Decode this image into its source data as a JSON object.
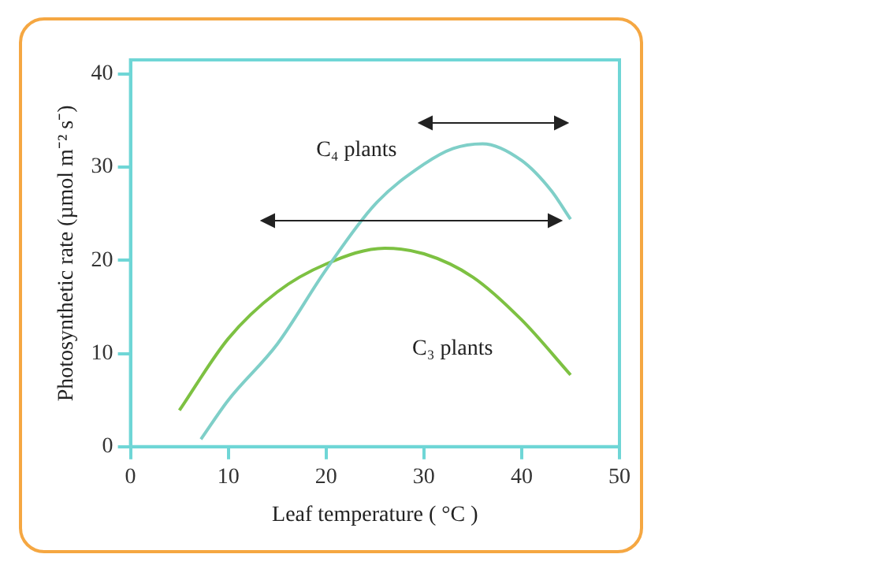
{
  "chart_data": {
    "type": "line",
    "xlabel": "Leaf temperature ( °C )",
    "ylabel": "Photosynthetic rate (µmol m⁻² s⁻)",
    "xlim": [
      0,
      50
    ],
    "xticks": [
      0,
      10,
      20,
      30,
      40,
      50
    ],
    "ylim": [
      0,
      41.5
    ],
    "yticks": [
      0,
      10,
      20,
      30,
      40
    ],
    "grid": false,
    "legend": false,
    "marker": "none",
    "line_style": "solid",
    "series": [
      {
        "name": "C₄ plants",
        "color": "#7fcfc8",
        "x": [
          7.2,
          10,
          15,
          20,
          25,
          30,
          33,
          36,
          40,
          43,
          45
        ],
        "values": [
          0.8,
          5,
          11,
          19,
          26,
          30.3,
          32,
          32.5,
          30.7,
          27.5,
          24.4
        ]
      },
      {
        "name": "C₃ plants",
        "color": "#7dc142",
        "x": [
          5,
          10,
          15,
          20,
          26,
          30,
          35,
          40,
          45
        ],
        "values": [
          3.9,
          11.6,
          16.6,
          19.6,
          21.3,
          20.7,
          18.2,
          13.6,
          7.7
        ]
      }
    ]
  }
}
